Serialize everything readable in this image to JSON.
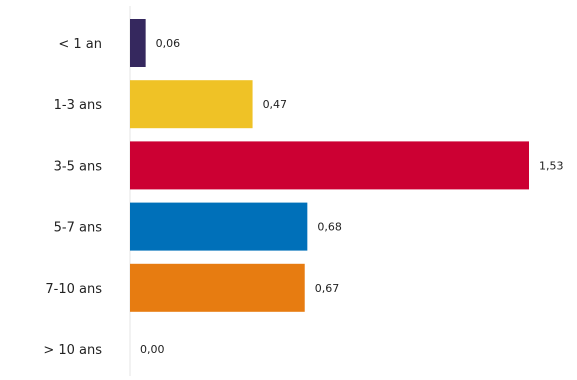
{
  "chart_data": {
    "type": "bar",
    "orientation": "horizontal",
    "title": "",
    "xlabel": "",
    "ylabel": "",
    "categories": [
      "< 1 an",
      "1-3 ans",
      "3-5 ans",
      "5-7 ans",
      "7-10 ans",
      "> 10 ans"
    ],
    "values": [
      0.06,
      0.47,
      1.53,
      0.68,
      0.67,
      0.0
    ],
    "value_labels": [
      "0,06",
      "0,47",
      "1,53",
      "0,68",
      "0,67",
      "0,00"
    ],
    "colors": [
      "#35285e",
      "#efc226",
      "#cc0033",
      "#0070b9",
      "#e77c11",
      "#cccccc"
    ],
    "xlim": [
      0,
      1.53
    ],
    "grid": false,
    "legend": "none"
  }
}
